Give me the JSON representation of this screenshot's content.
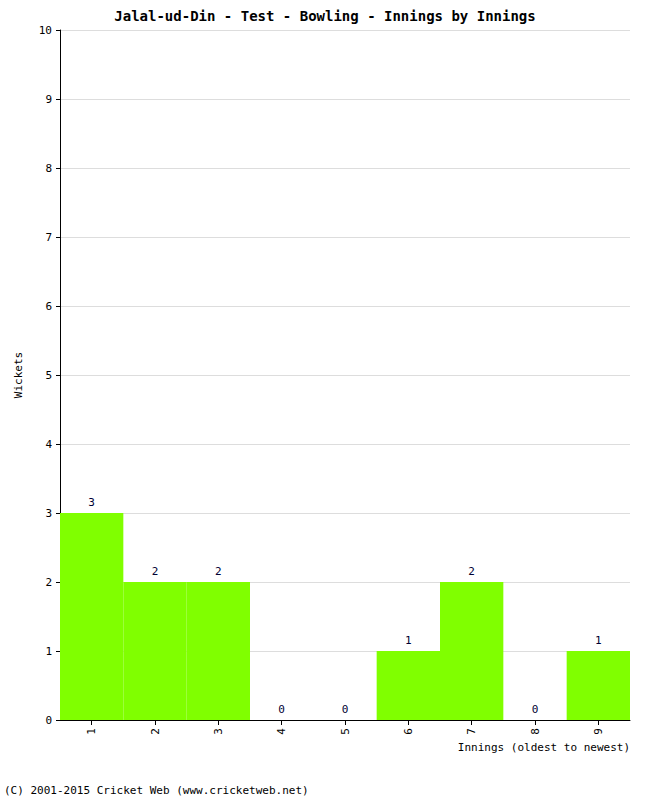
{
  "chart_data": {
    "type": "bar",
    "title": "Jalal-ud-Din - Test - Bowling - Innings by Innings",
    "x_label": "Innings (oldest to newest)",
    "y_label": "Wickets",
    "annotations": [
      "(C) 2001-2015 Cricket Web (www.cricketweb.net)"
    ],
    "categories": [
      "1",
      "2",
      "3",
      "4",
      "5",
      "6",
      "7",
      "8",
      "9"
    ],
    "values": [
      3,
      2,
      2,
      0,
      0,
      1,
      2,
      0,
      1
    ],
    "color": "#80ff00",
    "ylim": [
      0,
      10
    ],
    "yticks": [
      0,
      1,
      2,
      3,
      4,
      5,
      6,
      7,
      8,
      9,
      10
    ],
    "grid": true,
    "data_labels": true
  }
}
